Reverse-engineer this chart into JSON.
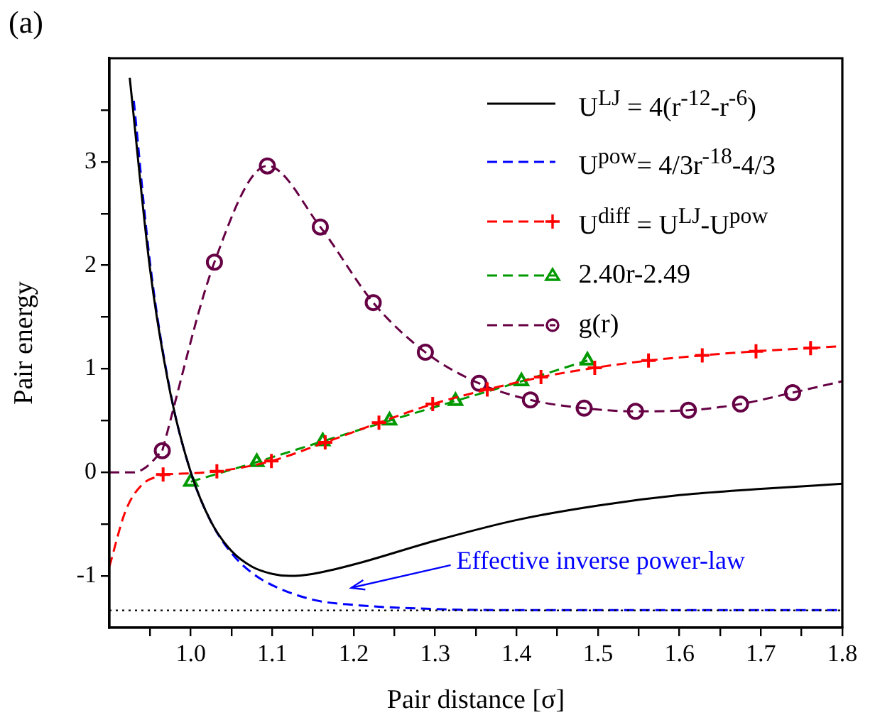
{
  "chart_data": {
    "type": "line",
    "xlabel": "Pair distance [σ]",
    "ylabel": "Pair energy",
    "xlim": [
      0.9,
      1.8
    ],
    "ylim": [
      -1.5,
      4
    ],
    "xticks": [
      {
        "value": 0.95,
        "label": null
      },
      {
        "value": 1.0,
        "label": "1.0"
      },
      {
        "value": 1.05,
        "label": null
      },
      1.1,
      {
        "value": 1.15,
        "label": null
      },
      1.2,
      {
        "value": 1.25,
        "label": null
      },
      1.3,
      {
        "value": 1.35,
        "label": null
      },
      1.4,
      {
        "value": 1.45,
        "label": null
      },
      1.5,
      {
        "value": 1.55,
        "label": null
      },
      1.6,
      {
        "value": 1.65,
        "label": null
      },
      1.7,
      {
        "value": 1.75,
        "label": null
      },
      1.8
    ],
    "yticks": [
      -1,
      {
        "value": -0.5,
        "label": null
      },
      0,
      {
        "value": 0.5,
        "label": null
      },
      1,
      {
        "value": 1.5,
        "label": null
      },
      2,
      {
        "value": 2.5,
        "label": null
      },
      3,
      {
        "value": 3.5,
        "label": null
      }
    ],
    "grid": false,
    "legend": "top right",
    "series": [
      {
        "name": "U$^{LJ}$ = 4(r$^{-12}$-r$^{-6}$)",
        "color": "#000000",
        "marker": "none",
        "line_style": "solid",
        "x": [
          0.925,
          0.95,
          0.975,
          1.0,
          1.025,
          1.05,
          1.075,
          1.1,
          1.122,
          1.15,
          1.2,
          1.3,
          1.4,
          1.5,
          1.6,
          1.7,
          1.8
        ],
        "values": [
          3.81,
          1.96,
          0.76,
          0,
          -0.48,
          -0.76,
          -0.91,
          -0.98,
          -1.0,
          -0.98,
          -0.89,
          -0.66,
          -0.46,
          -0.32,
          -0.22,
          -0.16,
          -0.11
        ]
      },
      {
        "name": "U$^{pow}$= 4/3r$^{-18}$-4/3",
        "color": "#0000ff",
        "marker": "none",
        "line_style": "dashed",
        "x": [
          0.93,
          0.95,
          0.975,
          1.0,
          1.025,
          1.05,
          1.075,
          1.1,
          1.15,
          1.2,
          1.3,
          1.4,
          1.5,
          1.6,
          1.7,
          1.8
        ],
        "values": [
          3.59,
          2.02,
          0.77,
          0,
          -0.48,
          -0.78,
          -0.97,
          -1.09,
          -1.23,
          -1.28,
          -1.32,
          -1.33,
          -1.33,
          -1.33,
          -1.33,
          -1.33
        ]
      },
      {
        "name": "U$^{diff}$ = U$^{LJ}$-U$^{pow}$",
        "color": "#ff0000",
        "marker": "cross",
        "line_style": "dashed",
        "x": [
          0.966,
          1.032,
          1.099,
          1.165,
          1.231,
          1.297,
          1.364,
          1.43,
          1.496,
          1.562,
          1.628,
          1.694,
          1.761
        ],
        "values": [
          -0.02,
          0.01,
          0.11,
          0.29,
          0.48,
          0.66,
          0.8,
          0.92,
          1.01,
          1.08,
          1.13,
          1.17,
          1.2
        ]
      },
      {
        "color": "#ff0000",
        "marker": "none",
        "line_style": "dashed",
        "x": [
          0.9,
          0.92,
          0.94,
          0.966,
          1.3,
          1.761,
          1.8
        ],
        "values": [
          -0.91,
          -0.37,
          -0.12,
          -0.02,
          null,
          1.2,
          1.22
        ]
      },
      {
        "name": "2.40r-2.49",
        "color": "#009900",
        "marker": "triangle",
        "line_style": "dashed",
        "x": [
          1.0,
          1.081,
          1.162,
          1.244,
          1.325,
          1.406,
          1.487
        ],
        "values": [
          -0.09,
          0.1,
          0.3,
          0.5,
          0.69,
          0.88,
          1.08
        ]
      },
      {
        "name": "g(r)",
        "color": "#660044",
        "marker": "circle",
        "line_style": "dashed",
        "x": [
          0.965,
          1.029,
          1.094,
          1.159,
          1.224,
          1.288,
          1.354,
          1.417,
          1.483,
          1.546,
          1.611,
          1.675,
          1.739
        ],
        "values": [
          0.21,
          2.03,
          2.96,
          2.37,
          1.64,
          1.16,
          0.86,
          0.7,
          0.62,
          0.59,
          0.6,
          0.66,
          0.77
        ]
      },
      {
        "color": "#660044",
        "marker": "none",
        "line_style": "dashed",
        "x": [
          0.9,
          0.93,
          0.945,
          0.965,
          1.3,
          1.739,
          1.8
        ],
        "values": [
          0,
          0,
          0.05,
          0.21,
          null,
          0.77,
          0.88
        ]
      }
    ],
    "ref_lines": [
      {
        "axis": "y",
        "value": -1.333,
        "color": "#000000",
        "line_style": "dotted"
      }
    ],
    "annotations": [
      "(a)",
      "Effective inverse power-law"
    ]
  }
}
